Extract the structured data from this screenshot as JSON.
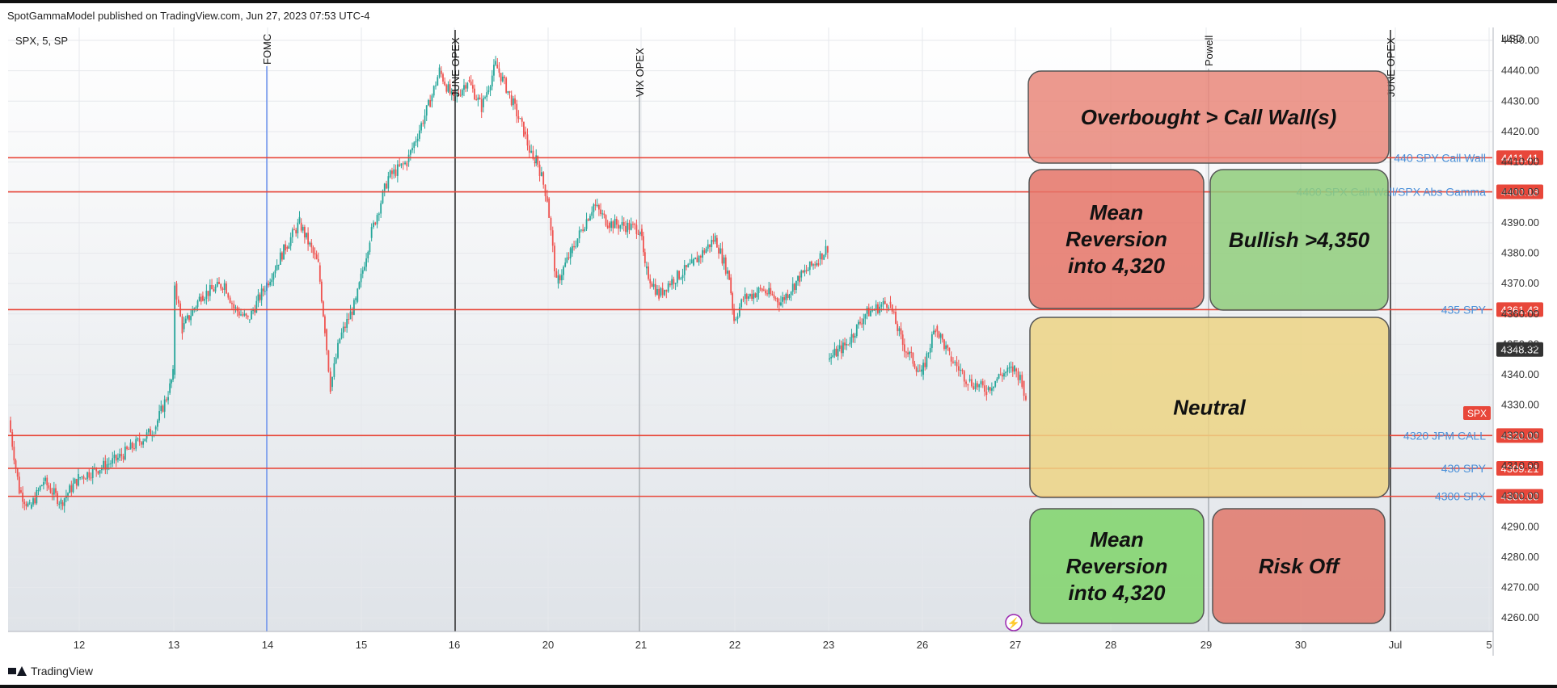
{
  "header": {
    "publisher": "SpotGammaModel published on TradingView.com, Jun 27, 2023 07:53 UTC-4"
  },
  "footer": {
    "brand": "TradingView"
  },
  "chart_data": {
    "type": "candlestick",
    "symbol_label": "SPX, 5, SP",
    "currency": "USD",
    "ylim": [
      4255,
      4452
    ],
    "y_ticks": [
      4260,
      4270,
      4280,
      4290,
      4300,
      4310,
      4320,
      4330,
      4340,
      4350,
      4360,
      4370,
      4380,
      4390,
      4400,
      4410,
      4420,
      4430,
      4440,
      4450
    ],
    "x_ticks": [
      "12",
      "13",
      "14",
      "15",
      "16",
      "20",
      "21",
      "22",
      "23",
      "26",
      "27",
      "28",
      "29",
      "30",
      "Jul",
      "5"
    ],
    "price_path": [
      [
        0.0,
        4325
      ],
      [
        0.15,
        4302
      ],
      [
        0.3,
        4296
      ],
      [
        0.5,
        4305
      ],
      [
        0.75,
        4298
      ],
      [
        1.0,
        4306
      ],
      [
        1.4,
        4312
      ],
      [
        1.8,
        4322
      ],
      [
        1.95,
        4334
      ],
      [
        2.0,
        4340
      ],
      [
        2.02,
        4370
      ],
      [
        2.1,
        4355
      ],
      [
        2.3,
        4366
      ],
      [
        2.55,
        4370
      ],
      [
        2.65,
        4362
      ],
      [
        2.8,
        4358
      ],
      [
        3.0,
        4370
      ],
      [
        3.2,
        4382
      ],
      [
        3.35,
        4390
      ],
      [
        3.55,
        4376
      ],
      [
        3.62,
        4355
      ],
      [
        3.68,
        4336
      ],
      [
        3.78,
        4352
      ],
      [
        3.95,
        4364
      ],
      [
        4.1,
        4385
      ],
      [
        4.3,
        4405
      ],
      [
        4.5,
        4410
      ],
      [
        4.75,
        4430
      ],
      [
        4.85,
        4440
      ],
      [
        5.0,
        4430
      ],
      [
        5.15,
        4437
      ],
      [
        5.3,
        4428
      ],
      [
        5.45,
        4442
      ],
      [
        5.6,
        4432
      ],
      [
        5.75,
        4420
      ],
      [
        5.85,
        4410
      ],
      [
        5.88,
        4412
      ],
      [
        6.0,
        4398
      ],
      [
        6.1,
        4370
      ],
      [
        6.25,
        4380
      ],
      [
        6.5,
        4396
      ],
      [
        6.65,
        4390
      ],
      [
        7.0,
        4388
      ],
      [
        7.05,
        4375
      ],
      [
        7.2,
        4366
      ],
      [
        7.3,
        4370
      ],
      [
        7.55,
        4376
      ],
      [
        7.8,
        4385
      ],
      [
        7.95,
        4372
      ],
      [
        8.0,
        4358
      ],
      [
        8.1,
        4365
      ],
      [
        8.3,
        4368
      ],
      [
        8.5,
        4364
      ],
      [
        8.7,
        4372
      ],
      [
        8.9,
        4378
      ],
      [
        9.0,
        4382
      ]
    ],
    "price_path_2": [
      [
        9.0,
        4345
      ],
      [
        9.2,
        4350
      ],
      [
        9.4,
        4360
      ],
      [
        9.65,
        4364
      ],
      [
        9.8,
        4350
      ],
      [
        10.0,
        4340
      ],
      [
        10.15,
        4356
      ],
      [
        10.3,
        4346
      ],
      [
        10.5,
        4338
      ],
      [
        10.7,
        4335
      ],
      [
        10.85,
        4340
      ],
      [
        11.0,
        4342
      ],
      [
        11.08,
        4338
      ],
      [
        11.12,
        4330
      ]
    ],
    "levels": [
      {
        "price": 4411.41,
        "label": "440 SPY Call Wall",
        "tag": "4411.41"
      },
      {
        "price": 4400.18,
        "label": "4400 SPX Call Wall/SPX Abs Gamma",
        "tag": "4400.18"
      },
      {
        "price": 4361.43,
        "label": "435 SPY",
        "tag": "4361.43"
      },
      {
        "price": 4320.0,
        "label": "4320 JPM CALL",
        "tag": "4320.00"
      },
      {
        "price": 4309.21,
        "label": "430 SPY",
        "tag": "4309.21"
      },
      {
        "price": 4300.0,
        "label": "4300 SPX",
        "tag": "4300.00"
      }
    ],
    "current_price": {
      "tag": "4348.32",
      "symbol": "SPX"
    },
    "events": [
      {
        "label": "FOMC",
        "color": "#4b7bec"
      },
      {
        "label": "JUNE OPEX",
        "color": "#333333"
      },
      {
        "label": "VIX OPEX",
        "color": "#9aa0a6"
      },
      {
        "label": "Powell",
        "color": "#9aa0a6"
      },
      {
        "label": "JUNE OPEX",
        "color": "#333333"
      }
    ],
    "zones": [
      {
        "text": [
          "Overbought > Call Wall(s)"
        ],
        "color": "#e9877a"
      },
      {
        "text": [
          "Mean",
          "Reversion",
          "into 4,320"
        ],
        "color": "#e57467"
      },
      {
        "text": [
          "Bullish >4,350"
        ],
        "color": "#8fcd7b"
      },
      {
        "text": [
          "Neutral"
        ],
        "color": "#ecd384"
      },
      {
        "text": [
          "Mean",
          "Reversion",
          "into 4,320"
        ],
        "color": "#7fd36a"
      },
      {
        "text": [
          "Risk Off"
        ],
        "color": "#e0776a"
      }
    ]
  }
}
